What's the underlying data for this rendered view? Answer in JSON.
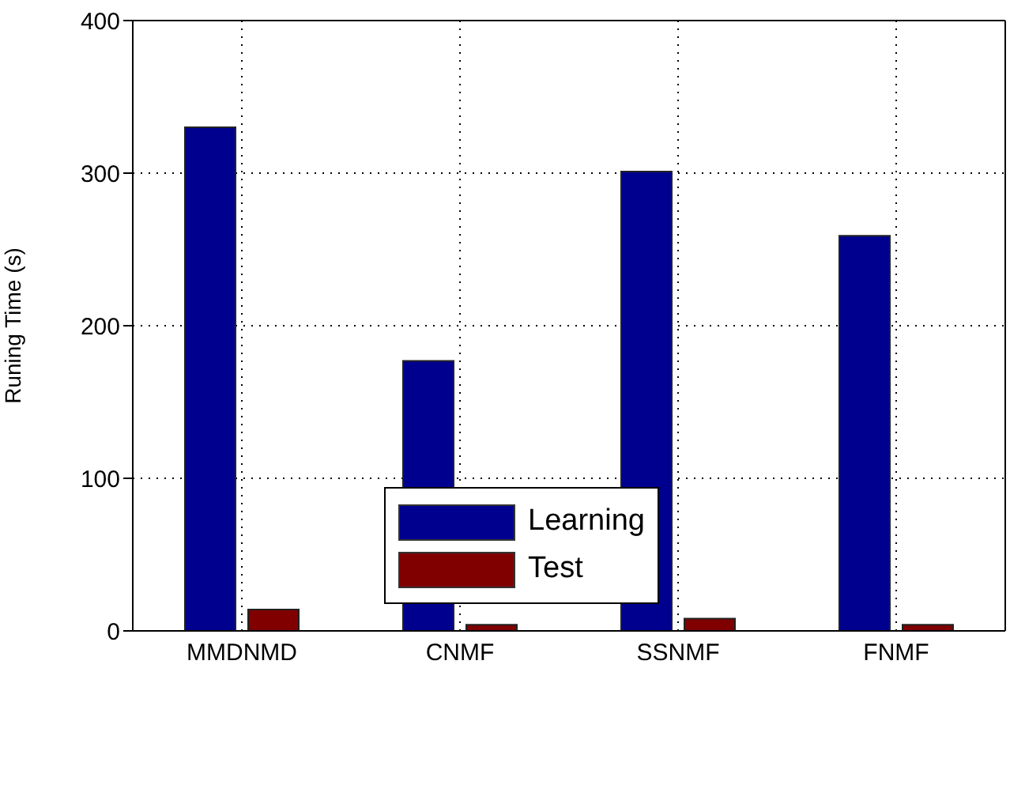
{
  "chart_data": {
    "type": "bar",
    "ylabel": "Runing Time (s)",
    "categories": [
      "MMDNMD",
      "CNMF",
      "SSNMF",
      "FNMF"
    ],
    "series": [
      {
        "name": "Learning",
        "color": "#00008f",
        "values": [
          330,
          177,
          301,
          259
        ]
      },
      {
        "name": "Test",
        "color": "#800000",
        "values": [
          14,
          4,
          8,
          4
        ]
      }
    ],
    "ylim": [
      0,
      400
    ],
    "yticks": [
      0,
      100,
      200,
      300,
      400
    ],
    "grid": true,
    "legend": "bottom"
  }
}
